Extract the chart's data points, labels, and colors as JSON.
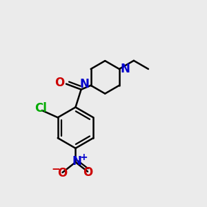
{
  "background_color": "#ebebeb",
  "bond_color": "#000000",
  "N_color": "#0000cc",
  "O_color": "#cc0000",
  "Cl_color": "#00aa00",
  "font_size_atom": 11,
  "bond_width": 1.8,
  "fig_width": 3.0,
  "fig_height": 3.0,
  "dpi": 100,
  "xlim": [
    0,
    10
  ],
  "ylim": [
    -1,
    10
  ]
}
